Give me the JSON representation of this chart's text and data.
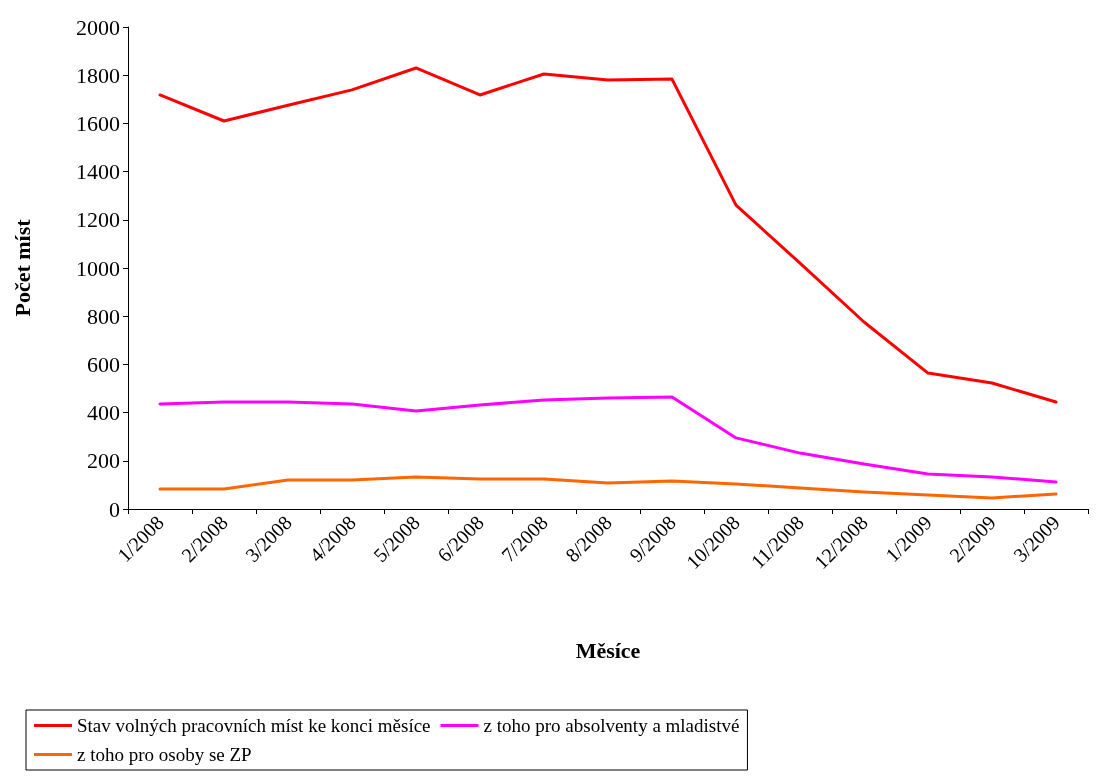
{
  "chart_data": {
    "type": "line",
    "xlabel": "Měsíce",
    "ylabel": "Počet míst",
    "categories": [
      "1/2008",
      "2/2008",
      "3/2008",
      "4/2008",
      "5/2008",
      "6/2008",
      "7/2008",
      "8/2008",
      "9/2008",
      "10/2008",
      "11/2008",
      "12/2008",
      "1/2009",
      "2/2009",
      "3/2009"
    ],
    "series": [
      {
        "name": "Stav volných pracovních míst ke konci měsíce",
        "color": "#ff0000",
        "values": [
          1718,
          1610,
          1675,
          1739,
          1830,
          1718,
          1805,
          1780,
          1784,
          1261,
          1020,
          776,
          564,
          523,
          444
        ]
      },
      {
        "name": "z toho pro absolventy a mladistvé",
        "color": "#ff00ff",
        "values": [
          436,
          444,
          444,
          436,
          407,
          432,
          452,
          461,
          465,
          295,
          232,
          187,
          145,
          133,
          112
        ]
      },
      {
        "name": "z toho pro osoby se ZP",
        "color": "#ff6600",
        "values": [
          83,
          83,
          120,
          120,
          133,
          124,
          124,
          108,
          116,
          104,
          87,
          71,
          58,
          46,
          62
        ]
      }
    ],
    "ylim": [
      0,
      2000
    ],
    "yticks": [
      0,
      200,
      400,
      600,
      800,
      1000,
      1200,
      1400,
      1600,
      1800,
      2000
    ],
    "grid": false,
    "legend": "bottom",
    "marker": "none",
    "line_style": "solid"
  }
}
